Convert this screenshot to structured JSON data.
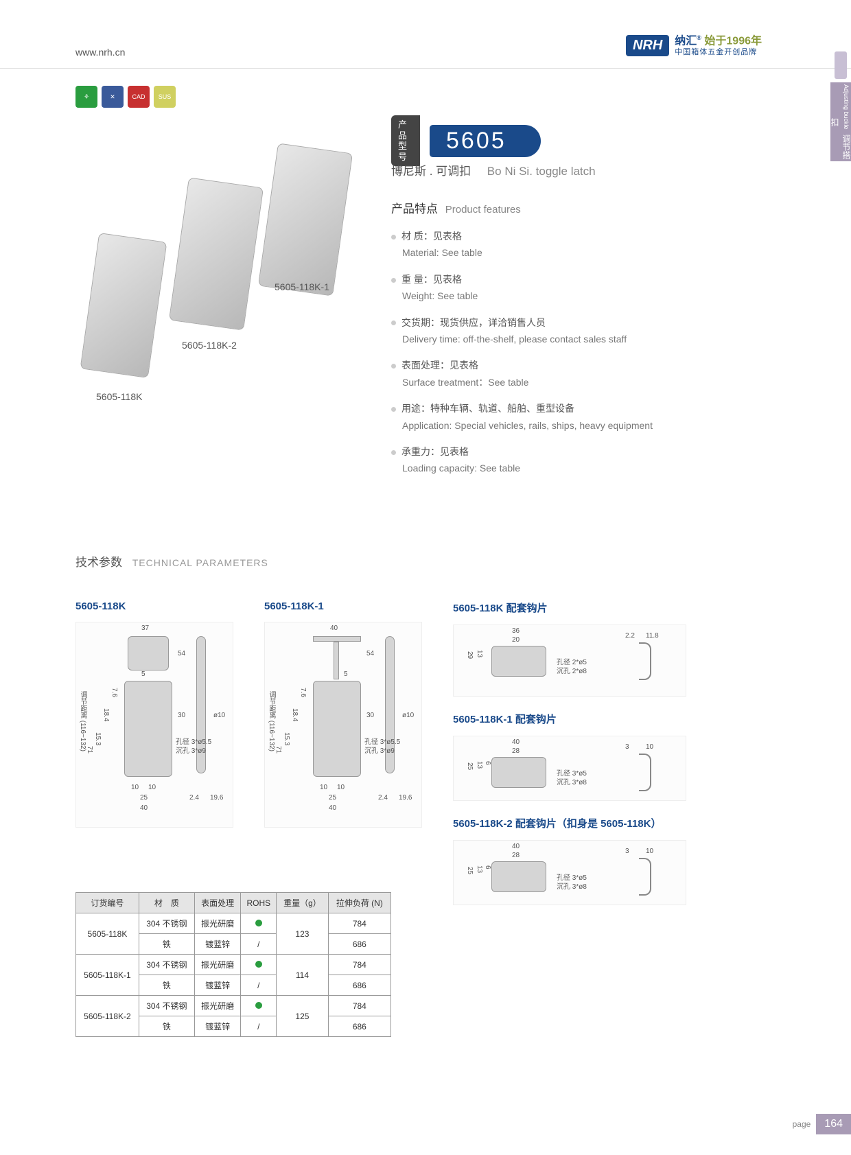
{
  "header": {
    "url": "www.nrh.cn",
    "logo_badge": "NRH",
    "logo_brand": "纳汇",
    "logo_year": "始于1996年",
    "logo_tagline": "中国箱体五金开创品牌"
  },
  "side_tab": {
    "cn": "调节搭扣",
    "en": "Adjusting buckle"
  },
  "icon_badges": [
    {
      "bg": "#2a9d3f",
      "txt": "⚘"
    },
    {
      "bg": "#3a5a9a",
      "txt": "✕"
    },
    {
      "bg": "#c73030",
      "txt": "CAD"
    },
    {
      "bg": "#d0d060",
      "txt": "SUS"
    }
  ],
  "product_labels": {
    "a": "5605-118K-1",
    "b": "5605-118K-2",
    "c": "5605-118K"
  },
  "model": {
    "label": "产品\n型号",
    "number": "5605"
  },
  "subtitle": {
    "cn": "博尼斯 . 可调扣",
    "en": "Bo Ni Si. toggle latch"
  },
  "features_title": {
    "cn": "产品特点",
    "en": "Product features"
  },
  "features": [
    {
      "cn": "材 质：见表格",
      "en": "Material: See table"
    },
    {
      "cn": "重 量：见表格",
      "en": "Weight: See table"
    },
    {
      "cn": "交货期：现货供应，详洽销售人员",
      "en": "Delivery time: off-the-shelf, please contact sales staff"
    },
    {
      "cn": "表面处理：见表格",
      "en": "Surface treatment：See table"
    },
    {
      "cn": "用途：特种车辆、轨道、船舶、重型设备",
      "en": "Application: Special vehicles, rails, ships, heavy equipment"
    },
    {
      "cn": "承重力：见表格",
      "en": "Loading capacity: See table"
    }
  ],
  "tech_title": {
    "cn": "技术参数",
    "en": "TECHNICAL PARAMETERS"
  },
  "diagrams": {
    "d1": {
      "title": "5605-118K",
      "dims": {
        "w_top": "37",
        "h_54": "54",
        "h_5": "5",
        "h_76": "7.6",
        "h_184": "18.4",
        "h_153": "15.3",
        "h_71": "71",
        "h_30": "30",
        "range": "调节距离 (116~132)",
        "hole": "孔径 3*ø5.5",
        "sink": "沉孔 3*ø9",
        "b10": "10",
        "b10b": "10",
        "b25": "25",
        "b40": "40",
        "r_d": "ø10",
        "r_24": "2.4",
        "r_196": "19.6"
      }
    },
    "d2": {
      "title": "5605-118K-1",
      "dims": {
        "w_top": "40",
        "h_54": "54",
        "h_5": "5",
        "h_76": "7.6",
        "h_184": "18.4",
        "h_153": "15.3",
        "h_71": "71",
        "h_30": "30",
        "range": "调节距离 (116~132)",
        "hole": "孔径 3*ø5.5",
        "sink": "沉孔 3*ø9",
        "b10": "10",
        "b10b": "10",
        "b25": "25",
        "b40": "40",
        "r_d": "ø10",
        "r_24": "2.4",
        "r_196": "19.6"
      }
    },
    "plates": [
      {
        "title": "5605-118K 配套钩片",
        "w36": "36",
        "w20": "20",
        "h29": "29",
        "h13": "13",
        "hole": "孔径 2*ø5",
        "sink": "沉孔 2*ø8",
        "hook_a": "2.2",
        "hook_b": "11.8"
      },
      {
        "title": "5605-118K-1 配套钩片",
        "w40": "40",
        "w28": "28",
        "h25": "25",
        "h13": "13",
        "h6": "6",
        "hole": "孔径 3*ø5",
        "sink": "沉孔 3*ø8",
        "hook_a": "3",
        "hook_b": "10"
      },
      {
        "title": "5605-118K-2 配套钩片（扣身是 5605-118K）",
        "w40": "40",
        "w28": "28",
        "h25": "25",
        "h13": "13",
        "h6": "6",
        "hole": "孔径 3*ø5",
        "sink": "沉孔 3*ø8",
        "hook_a": "3",
        "hook_b": "10"
      }
    ]
  },
  "table": {
    "headers": [
      "订货编号",
      "材　质",
      "表面处理",
      "ROHS",
      "重量（g）",
      "拉伸负荷 (N)"
    ],
    "rows": [
      {
        "code": "5605-118K",
        "mat": "304 不锈钢",
        "surf": "振光研磨",
        "rohs": true,
        "weight": "123",
        "load": "784",
        "rowspan_weight": 2
      },
      {
        "code": "",
        "mat": "铁",
        "surf": "镀蓝锌",
        "rohs": false,
        "weight": "",
        "load": "686"
      },
      {
        "code": "5605-118K-1",
        "mat": "304 不锈钢",
        "surf": "振光研磨",
        "rohs": true,
        "weight": "114",
        "load": "784",
        "rowspan_weight": 2
      },
      {
        "code": "",
        "mat": "铁",
        "surf": "镀蓝锌",
        "rohs": false,
        "weight": "",
        "load": "686"
      },
      {
        "code": "5605-118K-2",
        "mat": "304 不锈钢",
        "surf": "振光研磨",
        "rohs": true,
        "weight": "125",
        "load": "784",
        "rowspan_weight": 2
      },
      {
        "code": "",
        "mat": "铁",
        "surf": "镀蓝锌",
        "rohs": false,
        "weight": "",
        "load": "686"
      }
    ]
  },
  "page": {
    "label": "page",
    "num": "164"
  }
}
